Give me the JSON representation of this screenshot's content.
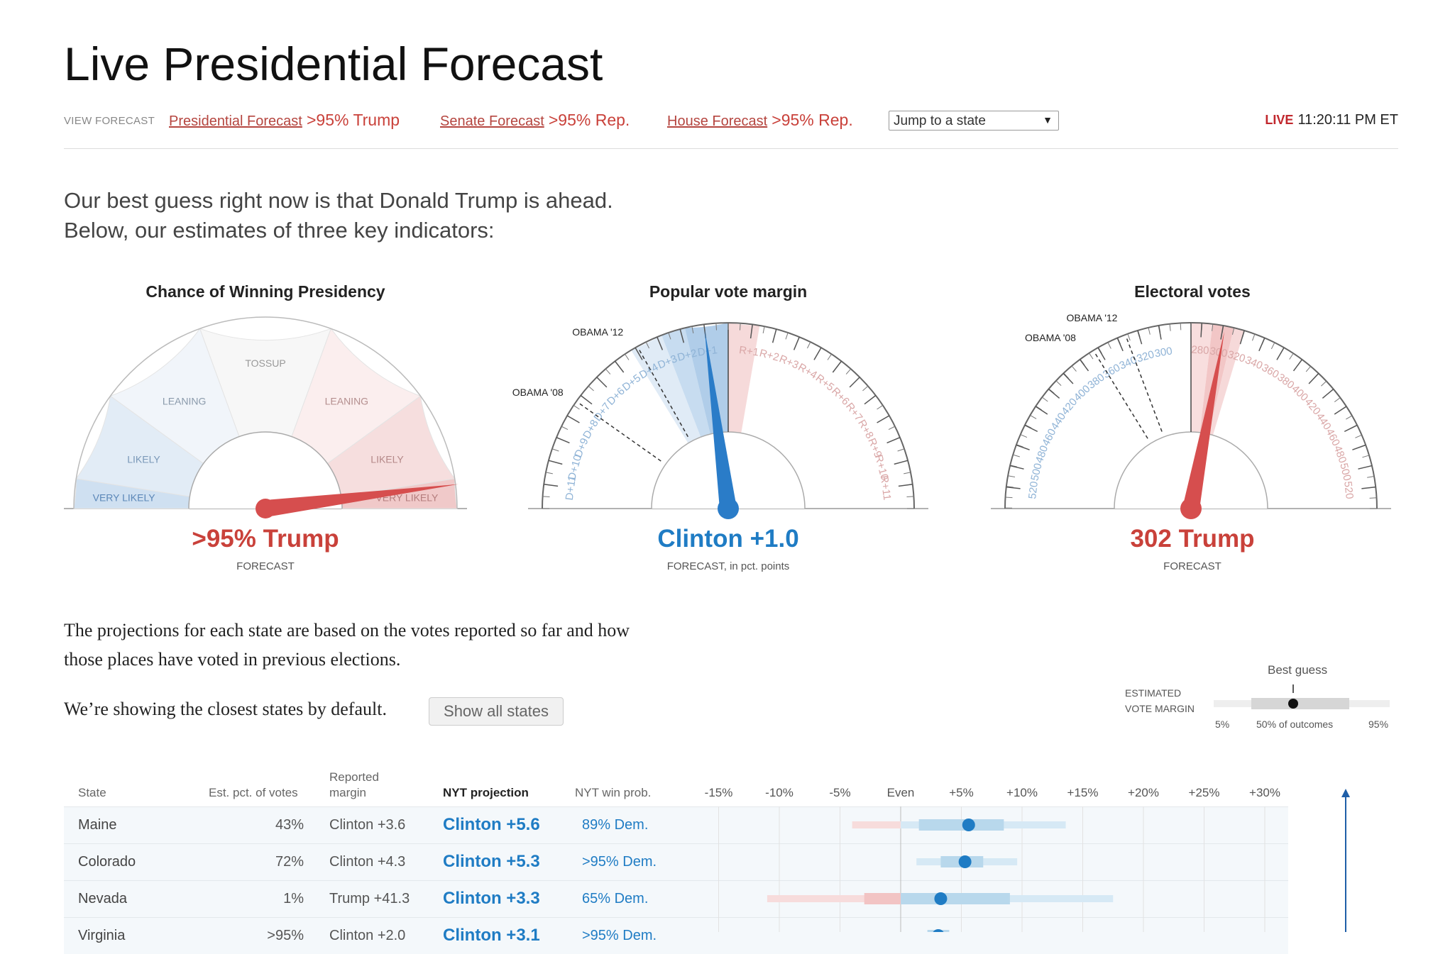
{
  "title": "Live Presidential Forecast",
  "nav": {
    "view_label": "VIEW FORECAST",
    "links": [
      {
        "label": "Presidential Forecast",
        "prob": ">95% Trump"
      },
      {
        "label": "Senate Forecast",
        "prob": ">95% Rep."
      },
      {
        "label": "House Forecast",
        "prob": ">95% Rep."
      }
    ],
    "jump_placeholder": "Jump to a state",
    "live_tag": "LIVE",
    "live_time": "11:20:11 PM ET"
  },
  "intro": {
    "line1": "Our best guess right now is that Donald Trump is ahead.",
    "line2": "Below, our estimates of three key indicators:"
  },
  "gauges": {
    "chance": {
      "title": "Chance of Winning Presidency",
      "zones": [
        "VERY LIKELY",
        "LIKELY",
        "LEANING",
        "TOSSUP",
        "LEANING",
        "LIKELY",
        "VERY LIKELY"
      ],
      "value_label": ">95% Trump",
      "sub": "FORECAST",
      "trump_probability_pct": 96
    },
    "popular": {
      "title": "Popular vote margin",
      "left_ticks": [
        "D+11",
        "D+10",
        "D+9",
        "D+8",
        "D+7",
        "D+6",
        "D+5",
        "D+4",
        "D+3",
        "D+2",
        "D+1"
      ],
      "right_ticks": [
        "R+1",
        "R+2",
        "R+3",
        "R+4",
        "R+5",
        "R+6",
        "R+7",
        "R+8",
        "R+9",
        "R+10",
        "R+11"
      ],
      "marker_08": "OBAMA '08",
      "marker_12": "OBAMA '12",
      "value_label": "Clinton +1.0",
      "sub": "FORECAST, in pct. points",
      "margin_dem_pts": 1.0
    },
    "electoral": {
      "title": "Electoral votes",
      "left_ticks": [
        "520",
        "500",
        "480",
        "460",
        "440",
        "420",
        "400",
        "380",
        "360",
        "340",
        "320",
        "300"
      ],
      "right_ticks": [
        "280",
        "300",
        "320",
        "340",
        "360",
        "380",
        "400",
        "420",
        "440",
        "460",
        "480",
        "500",
        "520"
      ],
      "marker_08": "OBAMA '08",
      "marker_12": "OBAMA '12",
      "value_label": "302 Trump",
      "sub": "FORECAST",
      "trump_ev": 302
    }
  },
  "projections_text": {
    "line1": "The projections for each state are based on the votes reported so far and how",
    "line2": "those places have voted in previous elections.",
    "closest": "We’re showing the closest states by default.",
    "show_all": "Show all states"
  },
  "legend": {
    "best_guess": "Best guess",
    "estimated": "ESTIMATED",
    "vote_margin": "VOTE MARGIN",
    "p5": "5%",
    "p50": "50% of outcomes",
    "p95": "95%"
  },
  "table": {
    "headers": {
      "state": "State",
      "est": "Est. pct. of votes",
      "reported1": "Reported",
      "reported2": "margin",
      "proj": "NYT projection",
      "win": "NYT win prob."
    },
    "axis_ticks": [
      "-15%",
      "-10%",
      "-5%",
      "Even",
      "+5%",
      "+10%",
      "+15%",
      "+20%",
      "+25%",
      "+30%"
    ],
    "rows": [
      {
        "state": "Maine",
        "pct": "43%",
        "margin": "Clinton +3.6",
        "proj": "Clinton +5.6",
        "win": "89% Dem."
      },
      {
        "state": "Colorado",
        "pct": "72%",
        "margin": "Clinton +4.3",
        "proj": "Clinton +5.3",
        "win": ">95% Dem."
      },
      {
        "state": "Nevada",
        "pct": "1%",
        "margin": "Trump +41.3",
        "proj": "Clinton +3.3",
        "win": "65% Dem."
      },
      {
        "state": "Virginia",
        "pct": ">95%",
        "margin": "Clinton +2.0",
        "proj": "Clinton +3.1",
        "win": ">95% Dem."
      }
    ]
  },
  "colors": {
    "dem": "#1f7cc4",
    "rep": "#c9413a"
  }
}
